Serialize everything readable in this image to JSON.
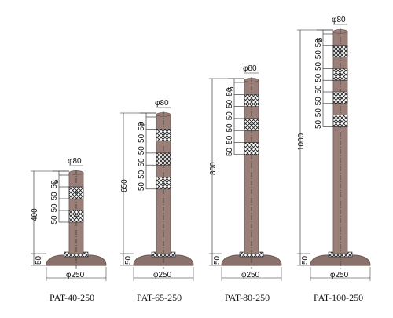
{
  "colors": {
    "post": "#9a7f78",
    "post_edge": "#6e5a55",
    "base": "#8a716b",
    "line": "#222222",
    "band_fill": "#ffffff"
  },
  "icons": {
    "reflective_band": "crosshatch-pattern",
    "center_mark": "plus-mark"
  },
  "posts": [
    {
      "model": "PAT-40-250",
      "top_dia": "φ80",
      "base_dia": "φ250",
      "height": "400",
      "base_h": "50",
      "top_gap": "5",
      "segments": [
        "50",
        "50",
        "50",
        "50"
      ],
      "bands": 2
    },
    {
      "model": "PAT-65-250",
      "top_dia": "φ80",
      "base_dia": "φ250",
      "height": "650",
      "base_h": "50",
      "top_gap": "5",
      "segments": [
        "50",
        "50",
        "50",
        "50",
        "50",
        "50"
      ],
      "bands": 3
    },
    {
      "model": "PAT-80-250",
      "top_dia": "φ80",
      "base_dia": "φ250",
      "height": "800",
      "base_h": "50",
      "top_gap": "5",
      "segments": [
        "50",
        "50",
        "50",
        "50",
        "50",
        "50"
      ],
      "bands": 3
    },
    {
      "model": "PAT-100-250",
      "top_dia": "φ80",
      "base_dia": "φ250",
      "height": "1000",
      "base_h": "50",
      "top_gap": "5",
      "segments": [
        "50",
        "50",
        "50",
        "50",
        "50",
        "50",
        "50",
        "50"
      ],
      "bands": 4
    }
  ]
}
